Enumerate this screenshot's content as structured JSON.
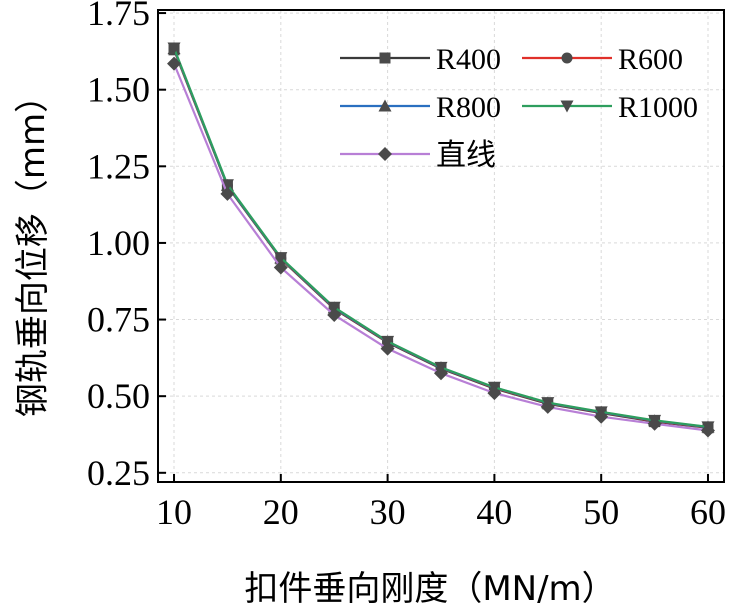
{
  "chart_data": {
    "type": "line",
    "xlabel": "扣件垂向刚度（MN/m）",
    "ylabel": "钢轨垂向位移（mm）",
    "xlim": [
      8.5,
      61.5
    ],
    "ylim": [
      0.22,
      1.76
    ],
    "xticks": [
      10,
      20,
      30,
      40,
      50,
      60
    ],
    "yticks": [
      0.25,
      0.5,
      0.75,
      1.0,
      1.25,
      1.5,
      1.75
    ],
    "ytick_labels": [
      "0.25",
      "0.50",
      "0.75",
      "1.00",
      "1.25",
      "1.50",
      "1.75"
    ],
    "grid": true,
    "legend_position": "top-right",
    "x": [
      10,
      15,
      20,
      25,
      30,
      35,
      40,
      45,
      50,
      55,
      60
    ],
    "series": [
      {
        "name": "R400",
        "color": "#3a3a3a",
        "marker": "square",
        "values": [
          1.63,
          1.185,
          0.948,
          0.785,
          0.675,
          0.59,
          0.525,
          0.475,
          0.445,
          0.417,
          0.397
        ]
      },
      {
        "name": "R600",
        "color": "#e0302a",
        "marker": "circle",
        "values": [
          1.632,
          1.187,
          0.95,
          0.787,
          0.677,
          0.592,
          0.527,
          0.477,
          0.447,
          0.419,
          0.398
        ]
      },
      {
        "name": "R800",
        "color": "#2a6fc0",
        "marker": "triangle-up",
        "values": [
          1.634,
          1.188,
          0.951,
          0.788,
          0.678,
          0.593,
          0.528,
          0.478,
          0.448,
          0.42,
          0.399
        ]
      },
      {
        "name": "R1000",
        "color": "#2e9e5e",
        "marker": "triangle-down",
        "values": [
          1.636,
          1.19,
          0.952,
          0.79,
          0.679,
          0.594,
          0.529,
          0.479,
          0.449,
          0.421,
          0.4
        ]
      },
      {
        "name": "直线",
        "color": "#b87fd6",
        "marker": "diamond",
        "values": [
          1.585,
          1.16,
          0.92,
          0.765,
          0.655,
          0.575,
          0.51,
          0.465,
          0.433,
          0.41,
          0.388
        ]
      }
    ]
  }
}
